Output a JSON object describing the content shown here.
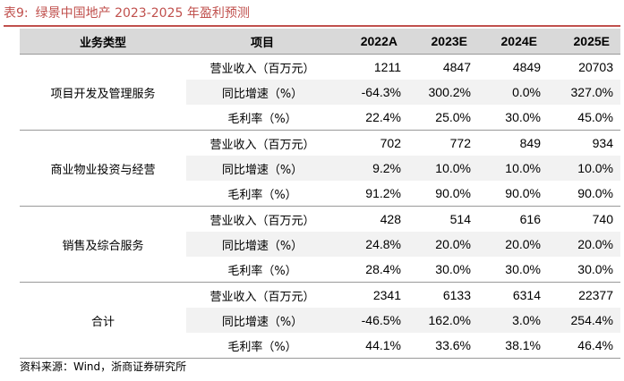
{
  "title": {
    "number": "表9:",
    "text": "绿景中国地产 2023-2025 年盈利预测"
  },
  "headers": [
    "业务类型",
    "项目",
    "2022A",
    "2023E",
    "2024E",
    "2025E"
  ],
  "groups": [
    {
      "segment": "项目开发及管理服务",
      "rows": [
        {
          "metric": "营业收入（百万元）",
          "values": [
            "1211",
            "4847",
            "4849",
            "20703"
          ]
        },
        {
          "metric": "同比增速（%）",
          "values": [
            "-64.3%",
            "300.2%",
            "0.0%",
            "327.0%"
          ]
        },
        {
          "metric": "毛利率（%）",
          "values": [
            "22.4%",
            "25.0%",
            "30.0%",
            "45.0%"
          ]
        }
      ]
    },
    {
      "segment": "商业物业投资与经营",
      "rows": [
        {
          "metric": "营业收入（百万元）",
          "values": [
            "702",
            "772",
            "849",
            "934"
          ]
        },
        {
          "metric": "同比增速（%）",
          "values": [
            "9.2%",
            "10.0%",
            "10.0%",
            "10.0%"
          ]
        },
        {
          "metric": "毛利率（%）",
          "values": [
            "91.2%",
            "90.0%",
            "90.0%",
            "90.0%"
          ]
        }
      ]
    },
    {
      "segment": "销售及综合服务",
      "rows": [
        {
          "metric": "营业收入（百万元）",
          "values": [
            "428",
            "514",
            "616",
            "740"
          ]
        },
        {
          "metric": "同比增速（%）",
          "values": [
            "24.8%",
            "20.0%",
            "20.0%",
            "20.0%"
          ]
        },
        {
          "metric": "毛利率（%）",
          "values": [
            "28.4%",
            "30.0%",
            "30.0%",
            "30.0%"
          ]
        }
      ]
    },
    {
      "segment": "合计",
      "rows": [
        {
          "metric": "营业收入（百万元）",
          "values": [
            "2341",
            "6133",
            "6314",
            "22377"
          ]
        },
        {
          "metric": "同比增速（%）",
          "values": [
            "-46.5%",
            "162.0%",
            "3.0%",
            "254.4%"
          ]
        },
        {
          "metric": "毛利率（%）",
          "values": [
            "44.1%",
            "33.6%",
            "38.1%",
            "46.4%"
          ]
        }
      ]
    }
  ],
  "source": "资料来源：Wind，浙商证券研究所",
  "colors": {
    "title": "#c0504d",
    "header_bg": "#d9d9d9",
    "row_shade": "#f2f2f2"
  }
}
